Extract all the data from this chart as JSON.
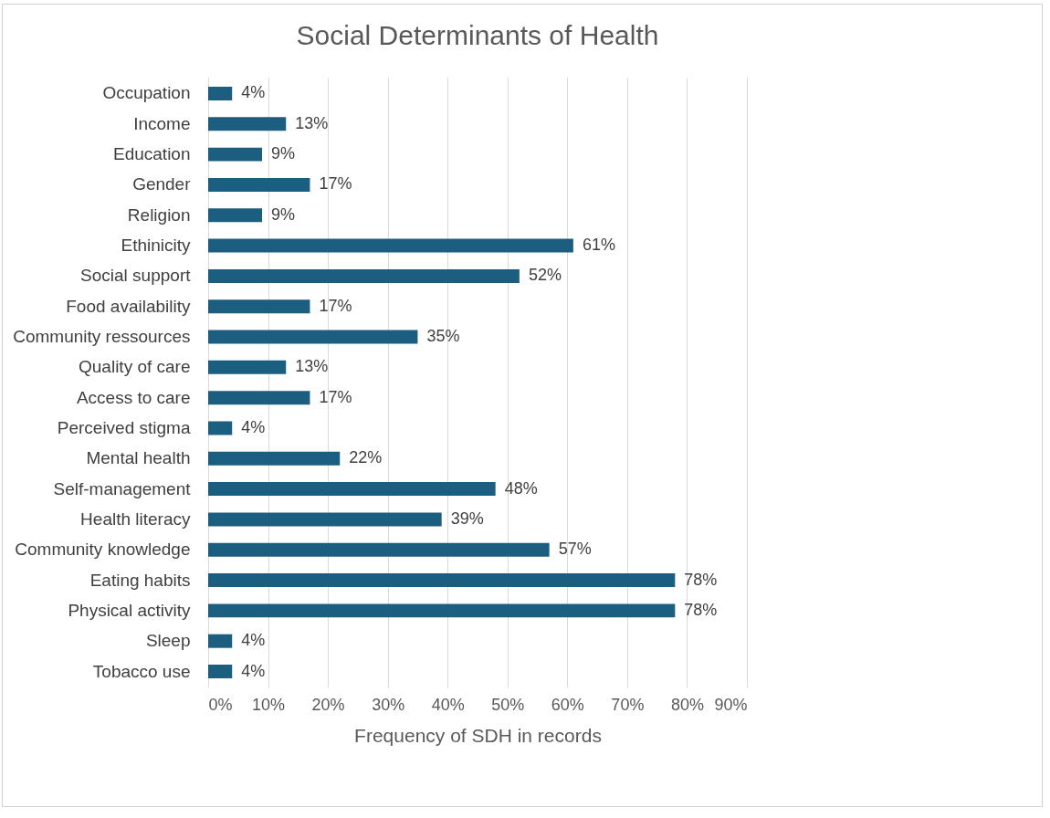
{
  "chart_data": {
    "type": "bar",
    "orientation": "horizontal",
    "title": "Social Determinants of Health",
    "xlabel": "Frequency of SDH in records",
    "categories": [
      "Occupation",
      "Income",
      "Education",
      "Gender",
      "Religion",
      "Ethinicity",
      "Social support",
      "Food availability",
      "Community ressources",
      "Quality of care",
      "Access to care",
      "Perceived stigma",
      "Mental health",
      "Self-management",
      "Health literacy",
      "Community knowledge",
      "Eating habits",
      "Physical activity",
      "Sleep",
      "Tobacco use"
    ],
    "values": [
      4,
      13,
      9,
      17,
      9,
      61,
      52,
      17,
      35,
      13,
      17,
      4,
      22,
      48,
      39,
      57,
      78,
      78,
      4,
      4
    ],
    "value_labels": [
      "4%",
      "13%",
      "9%",
      "17%",
      "9%",
      "61%",
      "52%",
      "17%",
      "35%",
      "13%",
      "17%",
      "4%",
      "22%",
      "48%",
      "39%",
      "57%",
      "78%",
      "78%",
      "4%",
      "4%"
    ],
    "color": "#1b5e80",
    "xlim": [
      0,
      90
    ],
    "xticks": [
      {
        "value": 0,
        "label": "0%"
      },
      {
        "value": 10,
        "label": "10%"
      },
      {
        "value": 20,
        "label": "20%"
      },
      {
        "value": 30,
        "label": "30%"
      },
      {
        "value": 40,
        "label": "40%"
      },
      {
        "value": 50,
        "label": "50%"
      },
      {
        "value": 60,
        "label": "60%"
      },
      {
        "value": 70,
        "label": "70%"
      },
      {
        "value": 80,
        "label": "80%"
      },
      {
        "value": 90,
        "label": "90%"
      }
    ],
    "grid": "x"
  }
}
